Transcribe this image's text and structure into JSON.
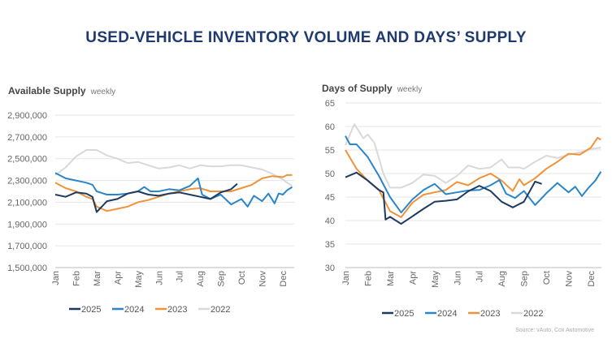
{
  "title": "USED-VEHICLE INVENTORY VOLUME AND DAYS’ SUPPLY",
  "source": "Source: vAuto, Cox Automotive",
  "chart_data": [
    {
      "type": "line",
      "title": "Available Supply",
      "subtitle": "weekly",
      "x_ticks": [
        "Jan",
        "Feb",
        "Mar",
        "Apr",
        "May",
        "Jun",
        "Jul",
        "Aug",
        "Sep",
        "Oct",
        "Nov",
        "Dec"
      ],
      "y_ticks": [
        "1,500,000",
        "1,700,000",
        "1,900,000",
        "2,100,000",
        "2,300,000",
        "2,500,000",
        "2,700,000",
        "2,900,000"
      ],
      "ylim": [
        1500000,
        2900000
      ],
      "grid": true,
      "legend": "bottom",
      "series": [
        {
          "name": "2025",
          "color": "#1f3a5f",
          "x": [
            1,
            1.5,
            2,
            2.5,
            2.8,
            3,
            3.5,
            4,
            4.5,
            5,
            5.5,
            6,
            6.5,
            7,
            7.5,
            8,
            8.5,
            9,
            9.5,
            9.8
          ],
          "y": [
            2170000,
            2150000,
            2190000,
            2180000,
            2150000,
            2010000,
            2110000,
            2130000,
            2180000,
            2200000,
            2170000,
            2160000,
            2180000,
            2190000,
            2170000,
            2150000,
            2130000,
            2190000,
            2220000,
            2270000
          ]
        },
        {
          "name": "2024",
          "color": "#2a86c8",
          "x": [
            1,
            1.5,
            2,
            2.5,
            2.8,
            3,
            3.5,
            4,
            4.5,
            5,
            5.3,
            5.6,
            6,
            6.5,
            7,
            7.5,
            7.9,
            8.1,
            8.5,
            9,
            9.5,
            10,
            10.3,
            10.6,
            11,
            11.3,
            11.6,
            11.8,
            12,
            12.2,
            12.45
          ],
          "y": [
            2370000,
            2320000,
            2300000,
            2280000,
            2260000,
            2200000,
            2170000,
            2170000,
            2180000,
            2200000,
            2240000,
            2200000,
            2200000,
            2220000,
            2210000,
            2250000,
            2320000,
            2170000,
            2130000,
            2170000,
            2080000,
            2130000,
            2060000,
            2160000,
            2110000,
            2180000,
            2090000,
            2180000,
            2170000,
            2210000,
            2240000
          ]
        },
        {
          "name": "2023",
          "color": "#f0923a",
          "x": [
            1,
            1.5,
            2,
            2.5,
            2.8,
            3,
            3.5,
            4,
            4.5,
            5,
            5.5,
            6,
            6.5,
            7,
            7.5,
            8,
            8.5,
            9,
            9.5,
            10,
            10.5,
            11,
            11.5,
            12,
            12.2,
            12.45
          ],
          "y": [
            2280000,
            2230000,
            2200000,
            2150000,
            2130000,
            2060000,
            2020000,
            2040000,
            2060000,
            2100000,
            2120000,
            2150000,
            2180000,
            2200000,
            2220000,
            2230000,
            2200000,
            2200000,
            2200000,
            2230000,
            2260000,
            2320000,
            2340000,
            2330000,
            2350000,
            2350000
          ]
        },
        {
          "name": "2022",
          "color": "#d9d9d9",
          "x": [
            1,
            1.5,
            2,
            2.5,
            3,
            3.5,
            4,
            4.5,
            5,
            5.5,
            6,
            6.5,
            7,
            7.5,
            8,
            8.5,
            9,
            9.5,
            10,
            10.5,
            11,
            11.5,
            12,
            12.2,
            12.45
          ],
          "y": [
            2350000,
            2420000,
            2520000,
            2580000,
            2580000,
            2530000,
            2500000,
            2460000,
            2470000,
            2440000,
            2410000,
            2420000,
            2440000,
            2410000,
            2440000,
            2430000,
            2430000,
            2440000,
            2440000,
            2420000,
            2400000,
            2360000,
            2310000,
            2280000,
            2250000
          ]
        }
      ]
    },
    {
      "type": "line",
      "title": "Days of Supply",
      "subtitle": "weekly",
      "x_ticks": [
        "Jan",
        "Feb",
        "Mar",
        "Apr",
        "May",
        "Jun",
        "Jul",
        "Aug",
        "Sep",
        "Oct",
        "Nov",
        "Dec"
      ],
      "y_ticks": [
        "30",
        "35",
        "40",
        "45",
        "50",
        "55",
        "60",
        "65"
      ],
      "ylim": [
        30,
        65
      ],
      "grid": true,
      "legend": "bottom",
      "series": [
        {
          "name": "2025",
          "color": "#1f3a5f",
          "x": [
            1,
            1.5,
            2,
            2.5,
            2.7,
            2.8,
            3,
            3.5,
            4,
            4.5,
            5,
            5.5,
            6,
            6.5,
            7,
            7.5,
            8,
            8.5,
            9,
            9.5,
            9.8
          ],
          "y": [
            49.2,
            50.2,
            48.5,
            46.5,
            46,
            40.2,
            40.8,
            39.3,
            40.9,
            42.5,
            44.0,
            44.2,
            44.5,
            46.2,
            47.4,
            46.3,
            44.0,
            42.8,
            44.0,
            48.3,
            47.8
          ]
        },
        {
          "name": "2024",
          "color": "#2a86c8",
          "x": [
            1,
            1.2,
            1.5,
            2,
            2.5,
            3,
            3.5,
            4,
            4.5,
            5,
            5.5,
            6,
            6.5,
            7,
            7.5,
            7.9,
            8.2,
            8.6,
            9,
            9.5,
            10,
            10.5,
            11,
            11.3,
            11.6,
            11.9,
            12.2,
            12.45
          ],
          "y": [
            58,
            56.2,
            56.2,
            53.5,
            49.5,
            45,
            41.7,
            44.5,
            46.5,
            47.8,
            45.6,
            46,
            46.4,
            46.5,
            47.5,
            48.6,
            45.7,
            44.8,
            46.3,
            43.3,
            45.8,
            48,
            46,
            47.2,
            45.2,
            47,
            48.5,
            50.4
          ]
        },
        {
          "name": "2023",
          "color": "#f0923a",
          "x": [
            1,
            1.5,
            2,
            2.5,
            3,
            3.5,
            4,
            4.5,
            5,
            5.5,
            6,
            6.5,
            7,
            7.5,
            8,
            8.5,
            8.8,
            9,
            9.5,
            10,
            10.5,
            11,
            11.5,
            12,
            12.3,
            12.45
          ],
          "y": [
            55,
            51,
            48.5,
            46.5,
            42,
            40.7,
            43.8,
            45.5,
            46,
            46.5,
            48.2,
            47.5,
            49,
            50,
            48.5,
            46.3,
            48.8,
            47.5,
            49,
            51,
            52.5,
            54.2,
            54,
            55.5,
            57.6,
            57.2
          ]
        },
        {
          "name": "2022",
          "color": "#d9d9d9",
          "x": [
            1,
            1.4,
            1.8,
            2,
            2.3,
            2.7,
            3,
            3.5,
            4,
            4.5,
            5,
            5.5,
            6,
            6.5,
            7,
            7.5,
            8,
            8.3,
            8.8,
            9,
            9.5,
            10,
            10.5,
            11,
            11.5,
            12,
            12.45
          ],
          "y": [
            56,
            60.5,
            57.5,
            58.3,
            56.5,
            50,
            47,
            47,
            48,
            49.8,
            49.5,
            48,
            49.5,
            51.7,
            51,
            51.3,
            53,
            51.3,
            51.3,
            51,
            52.5,
            53.8,
            53.3,
            54,
            54.5,
            55.2,
            55.5
          ]
        }
      ]
    }
  ]
}
